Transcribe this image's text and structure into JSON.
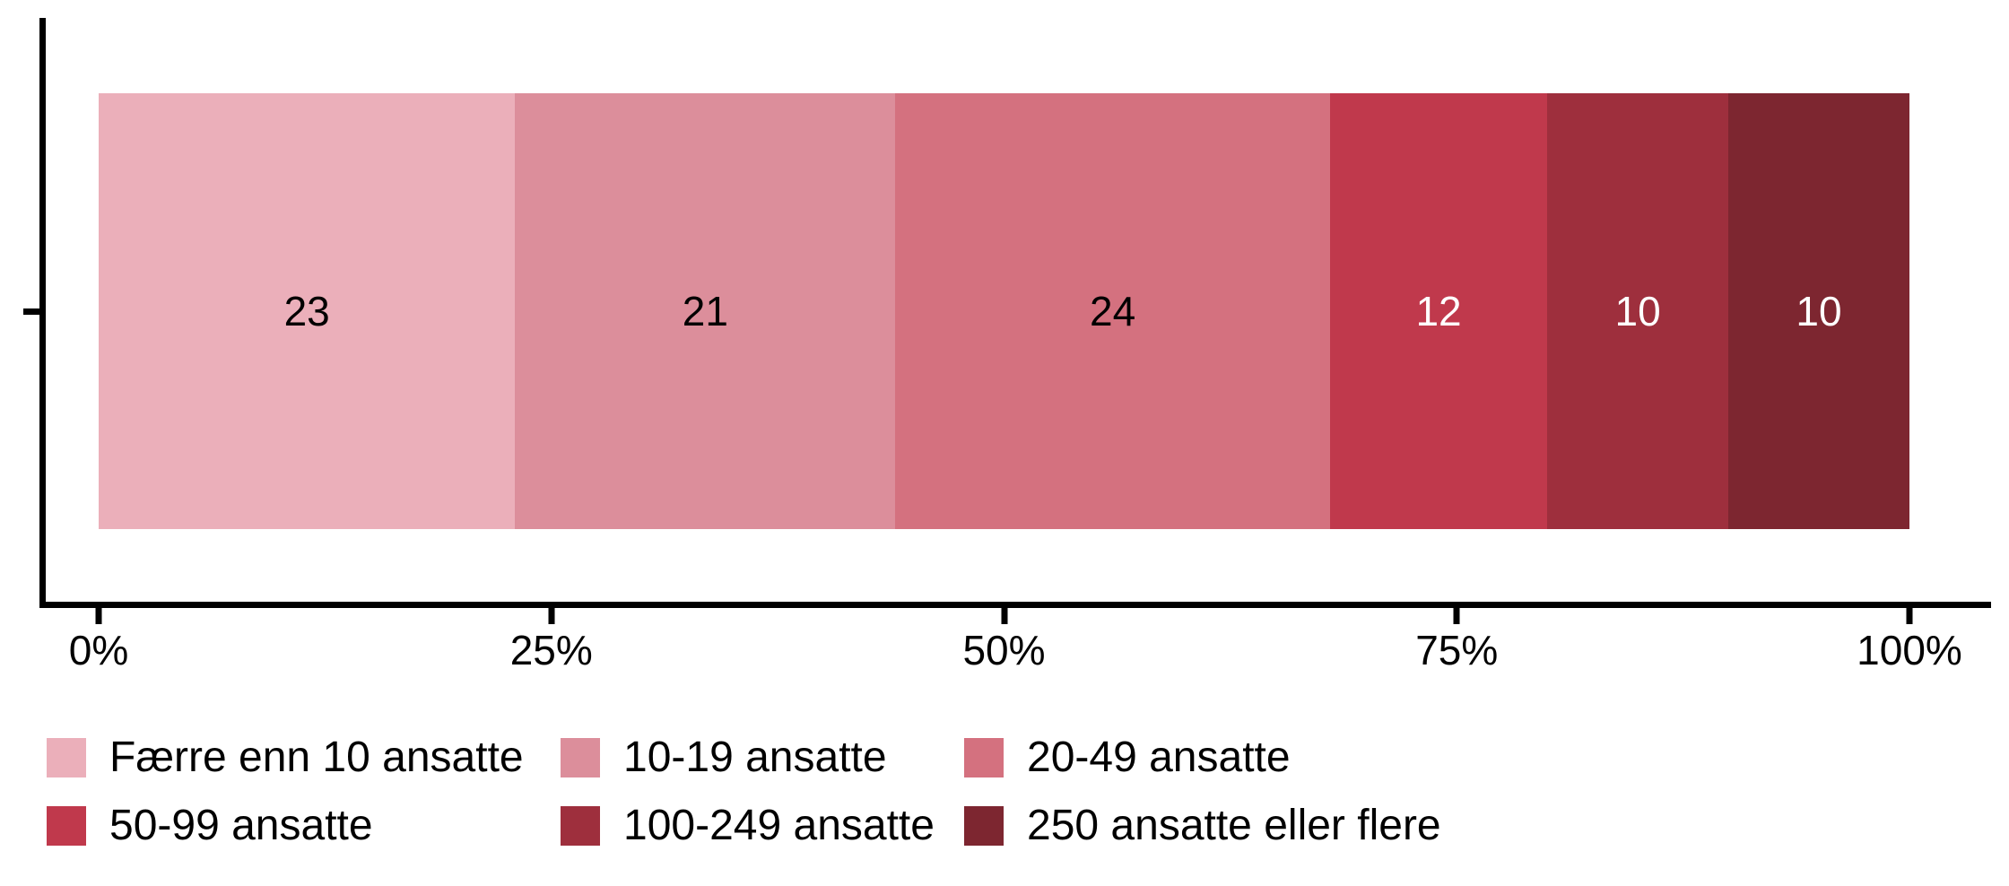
{
  "chart_data": {
    "type": "bar",
    "variant": "horizontal-stacked-percent",
    "title": "",
    "xlabel": "",
    "ylabel": "",
    "xlim": [
      0,
      100
    ],
    "grid": false,
    "legend_position": "bottom",
    "axis_color": "#000000",
    "background_color": "#ffffff",
    "x_ticks": [
      {
        "value": 0,
        "label": "0%"
      },
      {
        "value": 25,
        "label": "25%"
      },
      {
        "value": 50,
        "label": "50%"
      },
      {
        "value": 75,
        "label": "75%"
      },
      {
        "value": 100,
        "label": "100%"
      }
    ],
    "series": [
      {
        "name": "Færre enn 10 ansatte",
        "value": 23,
        "color": "#EBAFBA",
        "label_color": "#000000"
      },
      {
        "name": "10-19 ansatte",
        "value": 21,
        "color": "#DC8E9B",
        "label_color": "#000000"
      },
      {
        "name": "20-49 ansatte",
        "value": 24,
        "color": "#D4717F",
        "label_color": "#000000"
      },
      {
        "name": "50-99 ansatte",
        "value": 12,
        "color": "#C0394C",
        "label_color": "#FFFFFF"
      },
      {
        "name": "100-249 ansatte",
        "value": 10,
        "color": "#9E2F3D",
        "label_color": "#FFFFFF"
      },
      {
        "name": "250 ansatte eller flere",
        "value": 10,
        "color": "#7D2630",
        "label_color": "#FFFFFF"
      }
    ]
  }
}
